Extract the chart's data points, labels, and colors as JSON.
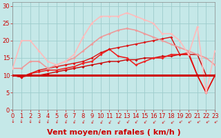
{
  "bg_color": "#c5e8e8",
  "grid_color": "#9dcccc",
  "xlabel": "Vent moyen/en rafales ( km/h )",
  "xlim": [
    0,
    23
  ],
  "ylim": [
    0,
    31
  ],
  "yticks": [
    0,
    5,
    10,
    15,
    20,
    25,
    30
  ],
  "xticks": [
    0,
    1,
    2,
    3,
    4,
    5,
    6,
    7,
    8,
    9,
    10,
    11,
    12,
    13,
    14,
    15,
    16,
    17,
    18,
    19,
    20,
    21,
    22,
    23
  ],
  "lines": [
    {
      "x": [
        0,
        1,
        2,
        3,
        4,
        5,
        6,
        7,
        8,
        9,
        10,
        11,
        12,
        13,
        14,
        15,
        16,
        17,
        18,
        19,
        20,
        21,
        22,
        23
      ],
      "y": [
        10,
        10,
        10,
        10,
        10,
        10,
        10,
        10,
        10,
        10,
        10,
        10,
        10,
        10,
        10,
        10,
        10,
        10,
        10,
        10,
        10,
        10,
        10,
        10
      ],
      "color": "#cc0000",
      "lw": 2.2,
      "marker": false,
      "ms": 0,
      "alpha": 1.0
    },
    {
      "x": [
        0,
        1,
        2,
        3,
        4,
        5,
        6,
        7,
        8,
        9,
        10,
        11,
        12,
        13,
        14,
        15,
        16,
        17,
        18,
        19,
        20,
        21,
        22,
        23
      ],
      "y": [
        10,
        9.5,
        10,
        10,
        10.5,
        11,
        11.5,
        12,
        12.5,
        13,
        13.5,
        14,
        14,
        14.5,
        14.5,
        15,
        15,
        15.5,
        15.5,
        16,
        16,
        16,
        10,
        10
      ],
      "color": "#cc0000",
      "lw": 1.0,
      "marker": true,
      "ms": 2.0,
      "alpha": 1.0
    },
    {
      "x": [
        0,
        1,
        2,
        3,
        4,
        5,
        6,
        7,
        8,
        9,
        10,
        11,
        12,
        13,
        14,
        15,
        16,
        17,
        18,
        19,
        20,
        21,
        22,
        23
      ],
      "y": [
        10,
        9.5,
        10.5,
        11,
        11.5,
        11.5,
        12,
        12.5,
        13.5,
        14,
        16,
        17.5,
        15.5,
        15,
        13,
        14,
        15,
        15,
        16,
        16,
        16.5,
        10,
        5,
        10
      ],
      "color": "#ee2222",
      "lw": 1.2,
      "marker": true,
      "ms": 2.0,
      "alpha": 1.0
    },
    {
      "x": [
        0,
        1,
        2,
        3,
        4,
        5,
        6,
        7,
        8,
        9,
        10,
        11,
        12,
        13,
        14,
        15,
        16,
        17,
        18,
        19,
        20,
        21,
        22,
        23
      ],
      "y": [
        10,
        9.5,
        10.5,
        11.5,
        12,
        12.5,
        13,
        13.5,
        14,
        15,
        16.5,
        17.5,
        18,
        18.5,
        19,
        19.5,
        20,
        20.5,
        21,
        16,
        16,
        10,
        5,
        10
      ],
      "color": "#dd1111",
      "lw": 1.0,
      "marker": true,
      "ms": 2.0,
      "alpha": 1.0
    },
    {
      "x": [
        0,
        1,
        2,
        3,
        4,
        5,
        6,
        7,
        8,
        9,
        10,
        11,
        12,
        13,
        14,
        15,
        16,
        17,
        18,
        19,
        20,
        21,
        22,
        23
      ],
      "y": [
        12,
        12,
        14,
        14,
        12,
        13,
        14,
        15,
        17,
        19,
        21,
        22,
        23,
        23.5,
        23,
        22,
        21,
        20,
        19,
        18,
        17,
        16,
        15,
        13
      ],
      "color": "#ee9999",
      "lw": 1.2,
      "marker": true,
      "ms": 2.0,
      "alpha": 1.0
    },
    {
      "x": [
        0,
        1,
        2,
        3,
        4,
        5,
        6,
        7,
        8,
        9,
        10,
        11,
        12,
        13,
        14,
        15,
        16,
        17,
        18,
        19,
        20,
        21,
        22,
        23
      ],
      "y": [
        12,
        20,
        20,
        17,
        14,
        13,
        14,
        16,
        21,
        25,
        27,
        27,
        27,
        28,
        27,
        26,
        25,
        22,
        22,
        20,
        16,
        24,
        5,
        17
      ],
      "color": "#ffbbbb",
      "lw": 1.2,
      "marker": true,
      "ms": 2.0,
      "alpha": 1.0
    }
  ],
  "tick_color": "#cc0000",
  "tick_fontsize": 6,
  "label_fontsize": 8,
  "label_fontweight": "bold"
}
